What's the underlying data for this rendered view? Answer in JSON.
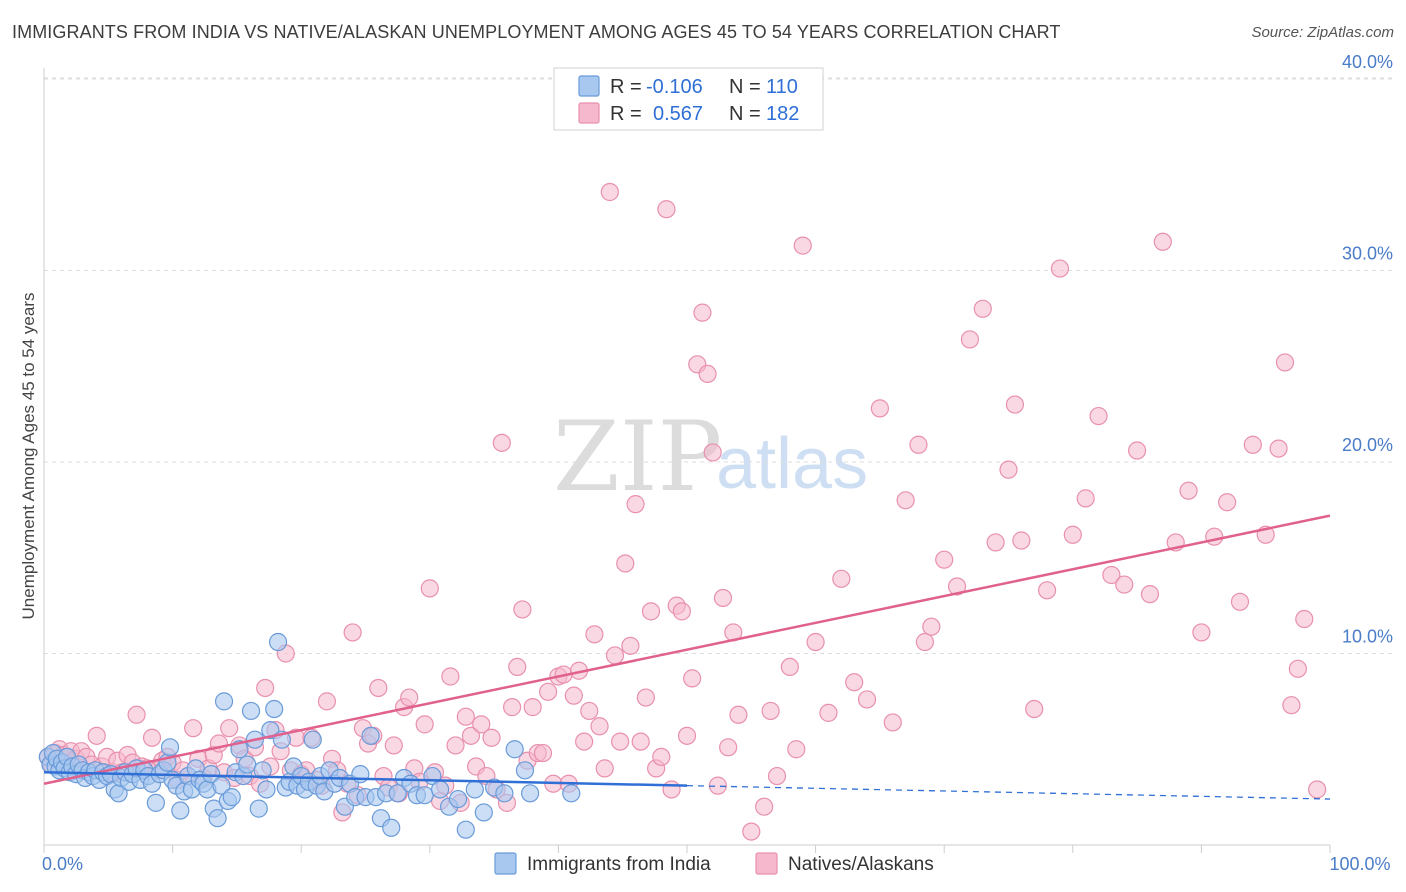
{
  "title": "IMMIGRANTS FROM INDIA VS NATIVE/ALASKAN UNEMPLOYMENT AMONG AGES 45 TO 54 YEARS CORRELATION CHART",
  "source": "Source: ZipAtlas.com",
  "watermark": {
    "zip": "ZIP",
    "atlas": "atlas"
  },
  "legend": {
    "series1": {
      "r_label": "R =",
      "r_value": "-0.106",
      "n_label": "N =",
      "n_value": "110"
    },
    "series2": {
      "r_label": "R =",
      "r_value": "0.567",
      "n_label": "N =",
      "n_value": "182"
    }
  },
  "bottom_legend": {
    "series1": "Immigrants from India",
    "series2": "Natives/Alaskans"
  },
  "colors": {
    "india_fill": "#a8c8f0",
    "india_stroke": "#6a9bd8",
    "india_line": "#2f6fd6",
    "native_fill": "#f6b8cc",
    "native_stroke": "#e890ae",
    "native_line": "#e0608e",
    "grid": "#dddddd",
    "tick_text": "#4a7cc8"
  },
  "chart_data": {
    "type": "scatter",
    "title": "IMMIGRANTS FROM INDIA VS NATIVE/ALASKAN UNEMPLOYMENT AMONG AGES 45 TO 54 YEARS CORRELATION CHART",
    "xlabel": "",
    "ylabel": "Unemployment Among Ages 45 to 54 years",
    "xlim": [
      0,
      100
    ],
    "ylim": [
      0,
      42
    ],
    "x_tick_labels": [
      {
        "value": 0,
        "label": "0.0%"
      },
      {
        "value": 100,
        "label": "100.0%"
      }
    ],
    "y_tick_labels": [
      {
        "value": 10,
        "label": "10.0%"
      },
      {
        "value": 20,
        "label": "20.0%"
      },
      {
        "value": 30,
        "label": "30.0%"
      },
      {
        "value": 40,
        "label": "40.0%"
      }
    ],
    "series": [
      {
        "name": "Immigrants from India",
        "R": -0.106,
        "N": 110,
        "trend": {
          "x0": 0,
          "y0": 3.8,
          "x1": 50,
          "y1": 3.1,
          "dash_x1": 100,
          "dash_y1": 2.4
        },
        "points": [
          [
            0.3,
            4.6
          ],
          [
            0.5,
            4.2
          ],
          [
            0.7,
            4.8
          ],
          [
            0.9,
            4.1
          ],
          [
            1.0,
            4.5
          ],
          [
            1.2,
            3.9
          ],
          [
            1.4,
            4.3
          ],
          [
            1.6,
            4.0
          ],
          [
            1.8,
            4.6
          ],
          [
            2.0,
            3.8
          ],
          [
            2.2,
            4.1
          ],
          [
            2.5,
            3.7
          ],
          [
            2.7,
            4.2
          ],
          [
            3.0,
            3.9
          ],
          [
            3.2,
            3.5
          ],
          [
            3.5,
            3.8
          ],
          [
            3.8,
            3.6
          ],
          [
            4.0,
            3.9
          ],
          [
            4.3,
            3.4
          ],
          [
            4.6,
            3.8
          ],
          [
            4.9,
            3.6
          ],
          [
            5.2,
            3.7
          ],
          [
            5.5,
            2.9
          ],
          [
            5.8,
            2.7
          ],
          [
            6.0,
            3.5
          ],
          [
            6.3,
            3.8
          ],
          [
            6.6,
            3.3
          ],
          [
            6.9,
            3.7
          ],
          [
            7.2,
            4.0
          ],
          [
            7.5,
            3.4
          ],
          [
            7.8,
            3.9
          ],
          [
            8.1,
            3.6
          ],
          [
            8.4,
            3.2
          ],
          [
            8.7,
            2.2
          ],
          [
            9.0,
            3.7
          ],
          [
            9.3,
            3.9
          ],
          [
            9.6,
            4.3
          ],
          [
            9.8,
            5.1
          ],
          [
            10.0,
            3.4
          ],
          [
            10.3,
            3.1
          ],
          [
            10.6,
            1.8
          ],
          [
            10.9,
            2.8
          ],
          [
            11.2,
            3.6
          ],
          [
            11.5,
            2.9
          ],
          [
            11.8,
            4.0
          ],
          [
            12.1,
            3.4
          ],
          [
            12.4,
            3.2
          ],
          [
            12.7,
            2.9
          ],
          [
            13.0,
            3.7
          ],
          [
            13.2,
            1.9
          ],
          [
            13.5,
            1.4
          ],
          [
            13.8,
            3.1
          ],
          [
            14.0,
            7.5
          ],
          [
            14.3,
            2.3
          ],
          [
            14.6,
            2.5
          ],
          [
            14.9,
            3.8
          ],
          [
            15.2,
            5.0
          ],
          [
            15.5,
            3.6
          ],
          [
            15.8,
            4.2
          ],
          [
            16.1,
            7.0
          ],
          [
            16.4,
            5.5
          ],
          [
            16.7,
            1.9
          ],
          [
            17.0,
            3.9
          ],
          [
            17.3,
            2.9
          ],
          [
            17.6,
            6.0
          ],
          [
            17.9,
            7.1
          ],
          [
            18.2,
            10.6
          ],
          [
            18.5,
            5.5
          ],
          [
            18.8,
            3.0
          ],
          [
            19.1,
            3.3
          ],
          [
            19.4,
            4.1
          ],
          [
            19.7,
            3.1
          ],
          [
            20.0,
            3.6
          ],
          [
            20.3,
            2.9
          ],
          [
            20.6,
            3.3
          ],
          [
            20.9,
            5.5
          ],
          [
            21.2,
            3.1
          ],
          [
            21.5,
            3.6
          ],
          [
            21.8,
            2.8
          ],
          [
            22.2,
            3.9
          ],
          [
            22.6,
            3.2
          ],
          [
            23.0,
            3.5
          ],
          [
            23.4,
            2.0
          ],
          [
            23.8,
            3.2
          ],
          [
            24.2,
            2.5
          ],
          [
            24.6,
            3.7
          ],
          [
            25.0,
            2.5
          ],
          [
            25.4,
            5.7
          ],
          [
            25.8,
            2.5
          ],
          [
            26.2,
            1.4
          ],
          [
            26.6,
            2.7
          ],
          [
            27.0,
            0.9
          ],
          [
            27.5,
            2.7
          ],
          [
            28.0,
            3.5
          ],
          [
            28.5,
            3.2
          ],
          [
            29.0,
            2.6
          ],
          [
            29.6,
            2.6
          ],
          [
            30.2,
            3.6
          ],
          [
            30.8,
            2.9
          ],
          [
            31.5,
            2.0
          ],
          [
            32.2,
            2.4
          ],
          [
            32.8,
            0.8
          ],
          [
            33.5,
            2.9
          ],
          [
            34.2,
            1.7
          ],
          [
            35.0,
            3.0
          ],
          [
            35.8,
            2.7
          ],
          [
            36.6,
            5.0
          ],
          [
            37.4,
            3.9
          ],
          [
            37.8,
            2.7
          ],
          [
            41.0,
            2.7
          ]
        ]
      },
      {
        "name": "Natives/Alaskans",
        "R": 0.567,
        "N": 182,
        "trend": {
          "x0": 0,
          "y0": 3.2,
          "x1": 100,
          "y1": 17.2
        },
        "points": [
          [
            0.3,
            4.6
          ],
          [
            0.6,
            4.2
          ],
          [
            0.9,
            4.8
          ],
          [
            1.2,
            5.0
          ],
          [
            1.5,
            4.7
          ],
          [
            1.8,
            4.3
          ],
          [
            2.1,
            4.9
          ],
          [
            2.5,
            4.5
          ],
          [
            2.9,
            4.9
          ],
          [
            3.3,
            4.6
          ],
          [
            3.7,
            4.2
          ],
          [
            4.1,
            5.7
          ],
          [
            4.5,
            4.1
          ],
          [
            4.9,
            4.6
          ],
          [
            5.3,
            3.8
          ],
          [
            5.7,
            4.4
          ],
          [
            6.1,
            3.8
          ],
          [
            6.5,
            4.7
          ],
          [
            6.9,
            4.3
          ],
          [
            7.2,
            6.8
          ],
          [
            7.6,
            4.1
          ],
          [
            8.0,
            4.0
          ],
          [
            8.4,
            5.6
          ],
          [
            8.8,
            3.9
          ],
          [
            9.2,
            4.4
          ],
          [
            9.6,
            4.6
          ],
          [
            10.0,
            4.3
          ],
          [
            10.4,
            3.4
          ],
          [
            10.8,
            3.9
          ],
          [
            11.2,
            3.6
          ],
          [
            11.6,
            6.1
          ],
          [
            12.0,
            4.5
          ],
          [
            12.4,
            3.5
          ],
          [
            12.8,
            4.0
          ],
          [
            13.2,
            4.7
          ],
          [
            13.6,
            5.3
          ],
          [
            14.0,
            3.8
          ],
          [
            14.4,
            6.1
          ],
          [
            14.8,
            3.5
          ],
          [
            15.2,
            5.2
          ],
          [
            15.6,
            4.5
          ],
          [
            16.0,
            3.6
          ],
          [
            16.4,
            5.1
          ],
          [
            16.8,
            3.2
          ],
          [
            17.2,
            8.2
          ],
          [
            17.6,
            4.1
          ],
          [
            18.0,
            6.0
          ],
          [
            18.4,
            4.9
          ],
          [
            18.8,
            10.0
          ],
          [
            19.2,
            3.9
          ],
          [
            19.6,
            5.6
          ],
          [
            20.0,
            3.7
          ],
          [
            20.4,
            3.9
          ],
          [
            20.8,
            5.6
          ],
          [
            21.2,
            3.4
          ],
          [
            21.6,
            3.1
          ],
          [
            22.0,
            7.5
          ],
          [
            22.4,
            4.5
          ],
          [
            22.8,
            3.9
          ],
          [
            23.2,
            1.7
          ],
          [
            23.6,
            3.2
          ],
          [
            24.0,
            11.1
          ],
          [
            24.4,
            2.6
          ],
          [
            24.8,
            6.1
          ],
          [
            25.2,
            5.3
          ],
          [
            25.6,
            5.7
          ],
          [
            26.0,
            8.2
          ],
          [
            26.4,
            3.6
          ],
          [
            26.8,
            3.0
          ],
          [
            27.2,
            5.2
          ],
          [
            27.6,
            2.7
          ],
          [
            28.0,
            7.2
          ],
          [
            28.4,
            7.7
          ],
          [
            28.8,
            4.0
          ],
          [
            29.2,
            3.3
          ],
          [
            29.6,
            6.3
          ],
          [
            30.0,
            13.4
          ],
          [
            30.4,
            3.8
          ],
          [
            30.8,
            2.3
          ],
          [
            31.2,
            3.1
          ],
          [
            31.6,
            8.8
          ],
          [
            32.0,
            5.2
          ],
          [
            32.4,
            2.2
          ],
          [
            32.8,
            6.7
          ],
          [
            33.2,
            5.7
          ],
          [
            33.6,
            4.1
          ],
          [
            34.0,
            6.3
          ],
          [
            34.4,
            3.6
          ],
          [
            34.8,
            5.6
          ],
          [
            35.2,
            2.9
          ],
          [
            35.6,
            21.0
          ],
          [
            36.0,
            2.2
          ],
          [
            36.4,
            7.2
          ],
          [
            36.8,
            9.3
          ],
          [
            37.2,
            12.3
          ],
          [
            37.6,
            4.4
          ],
          [
            38.0,
            7.2
          ],
          [
            38.4,
            4.8
          ],
          [
            38.8,
            4.8
          ],
          [
            39.2,
            8.0
          ],
          [
            39.6,
            3.2
          ],
          [
            40.0,
            8.8
          ],
          [
            40.4,
            8.9
          ],
          [
            40.8,
            3.2
          ],
          [
            41.2,
            7.8
          ],
          [
            41.6,
            9.1
          ],
          [
            42.0,
            5.4
          ],
          [
            42.4,
            7.0
          ],
          [
            42.8,
            11.0
          ],
          [
            43.2,
            6.2
          ],
          [
            43.6,
            4.0
          ],
          [
            44.0,
            34.1
          ],
          [
            44.4,
            9.9
          ],
          [
            44.8,
            5.4
          ],
          [
            45.2,
            14.7
          ],
          [
            45.6,
            10.4
          ],
          [
            46.0,
            17.8
          ],
          [
            46.4,
            5.4
          ],
          [
            46.8,
            7.7
          ],
          [
            47.2,
            12.2
          ],
          [
            47.6,
            4.0
          ],
          [
            48.0,
            4.6
          ],
          [
            48.4,
            33.2
          ],
          [
            48.8,
            2.9
          ],
          [
            49.2,
            12.5
          ],
          [
            49.6,
            12.2
          ],
          [
            50.0,
            5.7
          ],
          [
            50.4,
            8.7
          ],
          [
            50.8,
            25.1
          ],
          [
            51.2,
            27.8
          ],
          [
            51.6,
            24.6
          ],
          [
            52.0,
            20.5
          ],
          [
            52.4,
            3.1
          ],
          [
            52.8,
            12.9
          ],
          [
            53.2,
            5.1
          ],
          [
            53.6,
            11.1
          ],
          [
            54.0,
            6.8
          ],
          [
            55.0,
            0.7
          ],
          [
            56.0,
            2.0
          ],
          [
            56.5,
            7.0
          ],
          [
            57.0,
            3.6
          ],
          [
            58.0,
            9.3
          ],
          [
            58.5,
            5.0
          ],
          [
            59.0,
            31.3
          ],
          [
            60.0,
            10.6
          ],
          [
            61.0,
            6.9
          ],
          [
            62.0,
            13.9
          ],
          [
            63.0,
            8.5
          ],
          [
            64.0,
            7.6
          ],
          [
            65.0,
            22.8
          ],
          [
            66.0,
            6.4
          ],
          [
            67.0,
            18.0
          ],
          [
            68.0,
            20.9
          ],
          [
            68.5,
            10.6
          ],
          [
            69.0,
            11.4
          ],
          [
            70.0,
            14.9
          ],
          [
            71.0,
            13.5
          ],
          [
            72.0,
            26.4
          ],
          [
            73.0,
            28.0
          ],
          [
            74.0,
            15.8
          ],
          [
            75.0,
            19.6
          ],
          [
            75.5,
            23.0
          ],
          [
            76.0,
            15.9
          ],
          [
            77.0,
            7.1
          ],
          [
            78.0,
            13.3
          ],
          [
            79.0,
            30.1
          ],
          [
            80.0,
            16.2
          ],
          [
            81.0,
            18.1
          ],
          [
            82.0,
            22.4
          ],
          [
            83.0,
            14.1
          ],
          [
            84.0,
            13.6
          ],
          [
            85.0,
            20.6
          ],
          [
            86.0,
            13.1
          ],
          [
            87.0,
            31.5
          ],
          [
            88.0,
            15.8
          ],
          [
            89.0,
            18.5
          ],
          [
            90.0,
            11.1
          ],
          [
            91.0,
            16.1
          ],
          [
            92.0,
            17.9
          ],
          [
            93.0,
            12.7
          ],
          [
            94.0,
            20.9
          ],
          [
            95.0,
            16.2
          ],
          [
            96.0,
            20.7
          ],
          [
            96.5,
            25.2
          ],
          [
            97.0,
            7.3
          ],
          [
            97.5,
            9.2
          ],
          [
            98.0,
            11.8
          ],
          [
            99.0,
            2.9
          ]
        ]
      }
    ]
  }
}
